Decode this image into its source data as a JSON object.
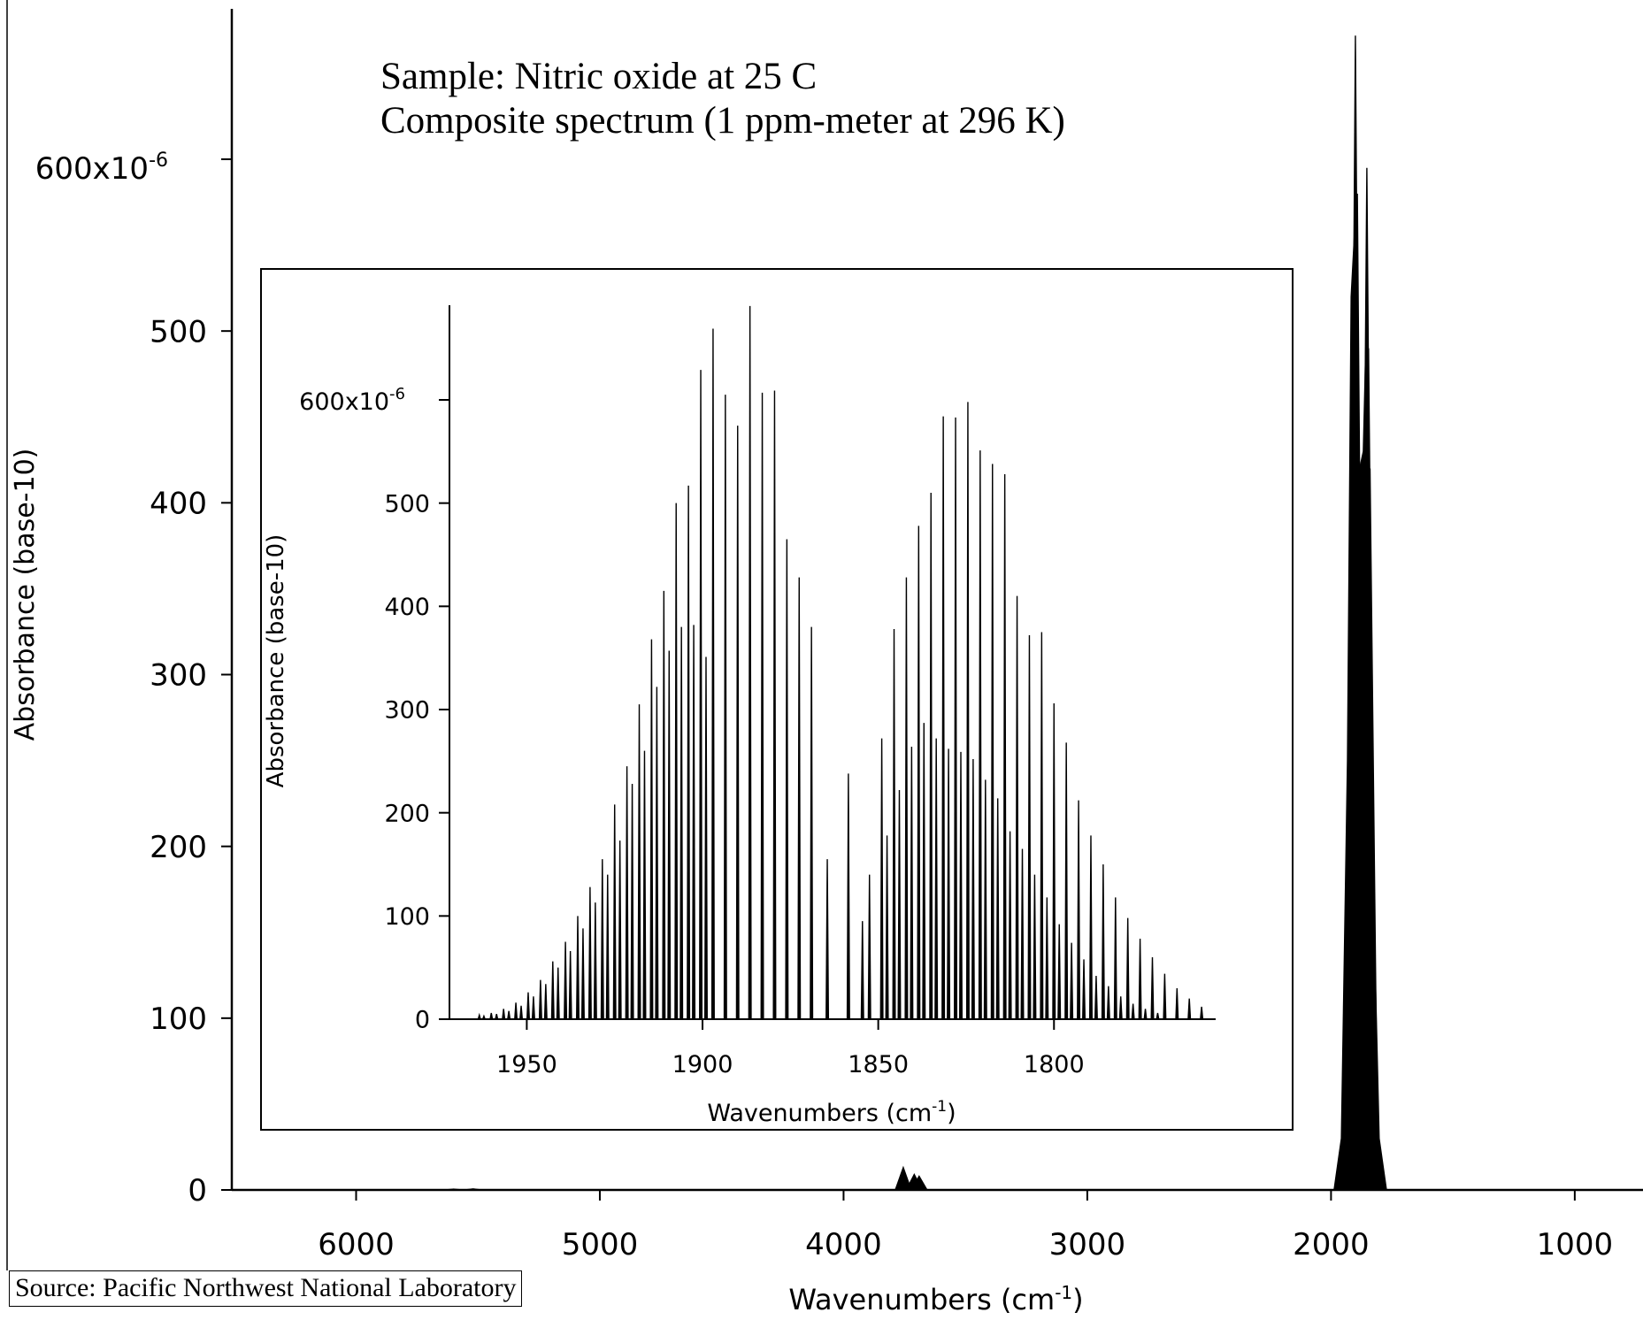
{
  "source_note": "Source: Pacific Northwest National Laboratory",
  "chart_data": [
    {
      "type": "line",
      "title": "Sample: Nitric oxide at 25 C",
      "subtitle": "Composite spectrum (1 ppm-meter at 296 K)",
      "xlabel_main": "Wavenumbers (cm",
      "xlabel_sup": "-1",
      "xlabel_close": ")",
      "ylabel": "Absorbance (base-10)",
      "x_reversed": true,
      "xlim": [
        6510,
        720
      ],
      "ylim": [
        0,
        700
      ],
      "x_ticks": [
        6000,
        5000,
        4000,
        3000,
        2000,
        1000
      ],
      "x_tick_labels": [
        "6000",
        "5000",
        "4000",
        "3000",
        "2000",
        "1000"
      ],
      "y_ticks": [
        0,
        100,
        200,
        300,
        400,
        500,
        600
      ],
      "y_tick_labels": [
        "0",
        "100",
        "200",
        "300",
        "400",
        "500",
        ""
      ],
      "y_top_label_base": "600x10",
      "y_top_label_exp": "-6",
      "series": [
        {
          "peaks": [
            {
              "x": 5600,
              "y": 0.5
            },
            {
              "x": 5520,
              "y": 0.6
            },
            {
              "x": 3755,
              "y": 13
            },
            {
              "x": 3710,
              "y": 9
            },
            {
              "x": 3690,
              "y": 8
            },
            {
              "x": 1900,
              "y": 672
            },
            {
              "x": 1892,
              "y": 580
            },
            {
              "x": 1876,
              "y": 248
            },
            {
              "x": 1853,
              "y": 595
            },
            {
              "x": 1846,
              "y": 490
            },
            {
              "x": 1840,
              "y": 420
            }
          ]
        }
      ]
    },
    {
      "type": "line",
      "inset": true,
      "xlabel_main": "Wavenumbers (cm",
      "xlabel_sup": "-1",
      "xlabel_close": ")",
      "ylabel": "Absorbance (base-10)",
      "x_reversed": true,
      "xlim": [
        1972,
        1754
      ],
      "ylim": [
        0,
        700
      ],
      "x_ticks": [
        1950,
        1900,
        1850,
        1800
      ],
      "x_tick_labels": [
        "1950",
        "1900",
        "1850",
        "1800"
      ],
      "y_ticks": [
        0,
        100,
        200,
        300,
        400,
        500,
        600
      ],
      "y_tick_labels": [
        "0",
        "100",
        "200",
        "300",
        "400",
        "500",
        ""
      ],
      "y_top_label_base": "600x10",
      "y_top_label_exp": "-6",
      "series": [
        {
          "peaks": [
            {
              "x": 1963.5,
              "y": 4
            },
            {
              "x": 1960.1,
              "y": 6
            },
            {
              "x": 1956.6,
              "y": 10
            },
            {
              "x": 1953.1,
              "y": 16
            },
            {
              "x": 1949.6,
              "y": 26
            },
            {
              "x": 1946.1,
              "y": 38
            },
            {
              "x": 1942.6,
              "y": 56
            },
            {
              "x": 1939.0,
              "y": 75
            },
            {
              "x": 1935.5,
              "y": 100
            },
            {
              "x": 1932.0,
              "y": 128
            },
            {
              "x": 1928.5,
              "y": 155
            },
            {
              "x": 1925.0,
              "y": 208
            },
            {
              "x": 1921.5,
              "y": 245
            },
            {
              "x": 1918.0,
              "y": 305
            },
            {
              "x": 1914.5,
              "y": 368
            },
            {
              "x": 1911.0,
              "y": 415
            },
            {
              "x": 1907.5,
              "y": 500
            },
            {
              "x": 1904.0,
              "y": 517
            },
            {
              "x": 1900.5,
              "y": 629
            },
            {
              "x": 1897.0,
              "y": 669
            },
            {
              "x": 1893.5,
              "y": 605
            },
            {
              "x": 1890.0,
              "y": 575
            },
            {
              "x": 1886.5,
              "y": 691
            },
            {
              "x": 1883.0,
              "y": 607
            },
            {
              "x": 1879.5,
              "y": 609
            },
            {
              "x": 1876.0,
              "y": 465
            },
            {
              "x": 1872.5,
              "y": 428
            },
            {
              "x": 1869.0,
              "y": 380
            },
            {
              "x": 1962.2,
              "y": 3
            },
            {
              "x": 1958.6,
              "y": 5
            },
            {
              "x": 1955.1,
              "y": 8
            },
            {
              "x": 1951.6,
              "y": 13
            },
            {
              "x": 1948.1,
              "y": 22
            },
            {
              "x": 1944.6,
              "y": 34
            },
            {
              "x": 1941.1,
              "y": 50
            },
            {
              "x": 1937.6,
              "y": 66
            },
            {
              "x": 1934.0,
              "y": 88
            },
            {
              "x": 1930.5,
              "y": 113
            },
            {
              "x": 1927.0,
              "y": 140
            },
            {
              "x": 1923.5,
              "y": 173
            },
            {
              "x": 1920.0,
              "y": 228
            },
            {
              "x": 1916.5,
              "y": 260
            },
            {
              "x": 1913.0,
              "y": 322
            },
            {
              "x": 1909.5,
              "y": 357
            },
            {
              "x": 1906.0,
              "y": 380
            },
            {
              "x": 1902.5,
              "y": 382
            },
            {
              "x": 1899.0,
              "y": 351
            },
            {
              "x": 1864.5,
              "y": 155
            },
            {
              "x": 1858.5,
              "y": 238
            },
            {
              "x": 1852.5,
              "y": 140
            },
            {
              "x": 1849.0,
              "y": 272
            },
            {
              "x": 1845.5,
              "y": 378
            },
            {
              "x": 1842.0,
              "y": 428
            },
            {
              "x": 1838.5,
              "y": 478
            },
            {
              "x": 1835.0,
              "y": 510
            },
            {
              "x": 1831.5,
              "y": 584
            },
            {
              "x": 1828.0,
              "y": 583
            },
            {
              "x": 1824.5,
              "y": 598
            },
            {
              "x": 1821.0,
              "y": 551
            },
            {
              "x": 1817.5,
              "y": 538
            },
            {
              "x": 1814.0,
              "y": 528
            },
            {
              "x": 1810.5,
              "y": 410
            },
            {
              "x": 1807.0,
              "y": 372
            },
            {
              "x": 1803.5,
              "y": 375
            },
            {
              "x": 1800.0,
              "y": 306
            },
            {
              "x": 1796.5,
              "y": 268
            },
            {
              "x": 1793.0,
              "y": 212
            },
            {
              "x": 1789.5,
              "y": 178
            },
            {
              "x": 1786.0,
              "y": 150
            },
            {
              "x": 1782.5,
              "y": 118
            },
            {
              "x": 1779.0,
              "y": 98
            },
            {
              "x": 1775.5,
              "y": 78
            },
            {
              "x": 1772.0,
              "y": 60
            },
            {
              "x": 1768.5,
              "y": 44
            },
            {
              "x": 1765.0,
              "y": 30
            },
            {
              "x": 1761.5,
              "y": 20
            },
            {
              "x": 1758.0,
              "y": 12
            },
            {
              "x": 1854.5,
              "y": 95
            },
            {
              "x": 1847.5,
              "y": 178
            },
            {
              "x": 1844.0,
              "y": 222
            },
            {
              "x": 1840.5,
              "y": 264
            },
            {
              "x": 1837.0,
              "y": 287
            },
            {
              "x": 1833.5,
              "y": 272
            },
            {
              "x": 1830.0,
              "y": 262
            },
            {
              "x": 1826.5,
              "y": 259
            },
            {
              "x": 1823.0,
              "y": 252
            },
            {
              "x": 1819.5,
              "y": 232
            },
            {
              "x": 1816.0,
              "y": 214
            },
            {
              "x": 1812.5,
              "y": 182
            },
            {
              "x": 1809.0,
              "y": 165
            },
            {
              "x": 1805.5,
              "y": 140
            },
            {
              "x": 1802.0,
              "y": 118
            },
            {
              "x": 1798.5,
              "y": 92
            },
            {
              "x": 1795.0,
              "y": 74
            },
            {
              "x": 1791.5,
              "y": 58
            },
            {
              "x": 1788.0,
              "y": 42
            },
            {
              "x": 1784.5,
              "y": 32
            },
            {
              "x": 1781.0,
              "y": 22
            },
            {
              "x": 1777.5,
              "y": 15
            },
            {
              "x": 1774.0,
              "y": 10
            },
            {
              "x": 1770.5,
              "y": 6
            }
          ]
        }
      ]
    }
  ]
}
